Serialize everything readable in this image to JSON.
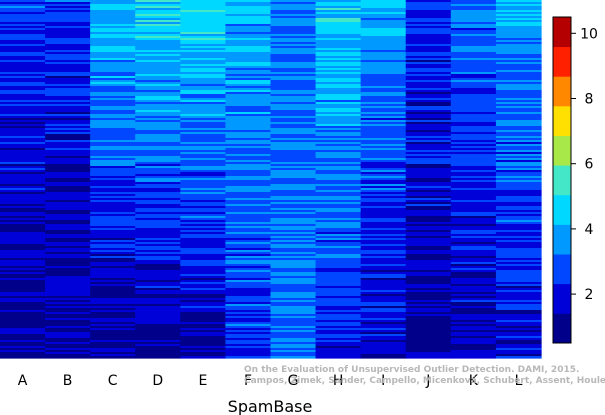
{
  "chart_data": {
    "type": "heatmap",
    "title": "",
    "xlabel": "SpamBase",
    "ylabel": "",
    "columns": [
      "A",
      "B",
      "C",
      "D",
      "E",
      "F",
      "G",
      "H",
      "I",
      "J",
      "K",
      "L"
    ],
    "colorbar": {
      "ticks": [
        2,
        4,
        6,
        8,
        10
      ],
      "range": [
        0.5,
        10.5
      ],
      "colors": [
        "#00008B",
        "#0000D8",
        "#0047FF",
        "#0099FF",
        "#00D8FF",
        "#44E8C8",
        "#A8E848",
        "#FFE000",
        "#FF8800",
        "#FF2000",
        "#B40000"
      ]
    },
    "column_profiles": [
      {
        "name": "A",
        "top": 2.6,
        "bottom": 1.0
      },
      {
        "name": "B",
        "top": 2.5,
        "bottom": 1.0
      },
      {
        "name": "C",
        "top": 4.6,
        "bottom": 1.0
      },
      {
        "name": "D",
        "top": 4.8,
        "bottom": 1.0
      },
      {
        "name": "E",
        "top": 5.0,
        "bottom": 1.2
      },
      {
        "name": "F",
        "top": 4.1,
        "bottom": 2.4
      },
      {
        "name": "G",
        "top": 3.3,
        "bottom": 3.2
      },
      {
        "name": "H",
        "top": 4.7,
        "bottom": 2.1
      },
      {
        "name": "I",
        "top": 4.0,
        "bottom": 1.6
      },
      {
        "name": "J",
        "top": 2.4,
        "bottom": 1.2
      },
      {
        "name": "K",
        "top": 3.3,
        "bottom": 1.4
      },
      {
        "name": "L",
        "top": 4.0,
        "bottom": 1.7
      }
    ]
  },
  "watermark": {
    "line1": "On the Evaluation of Unsupervised Outlier Detection. DAMI, 2015.",
    "line2": "Campos, Zimek, Sander, Campello, Micenková, Schubert, Assent, Houle"
  }
}
